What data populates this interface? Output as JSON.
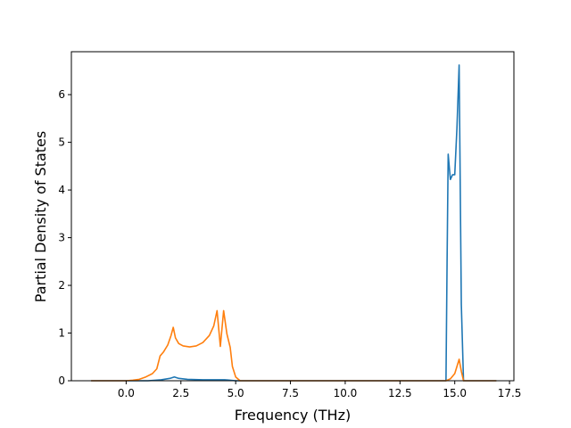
{
  "chart_data": {
    "type": "line",
    "xlabel": "Frequency (THz)",
    "ylabel": "Partial Density of States",
    "xlim": [
      -2.5,
      17.7
    ],
    "ylim": [
      0,
      6.9
    ],
    "xticks": [
      0.0,
      2.5,
      5.0,
      7.5,
      10.0,
      12.5,
      15.0,
      17.5
    ],
    "xtick_labels": [
      "0.0",
      "2.5",
      "5.0",
      "7.5",
      "10.0",
      "12.5",
      "15.0",
      "17.5"
    ],
    "yticks": [
      0,
      1,
      2,
      3,
      4,
      5,
      6
    ],
    "ytick_labels": [
      "0",
      "1",
      "2",
      "3",
      "4",
      "5",
      "6"
    ],
    "grid": false,
    "series": [
      {
        "color": "#1f77b4",
        "points": [
          [
            -1.6,
            0
          ],
          [
            0.0,
            0
          ],
          [
            1.0,
            0.0
          ],
          [
            1.6,
            0.02
          ],
          [
            2.0,
            0.05
          ],
          [
            2.2,
            0.08
          ],
          [
            2.4,
            0.05
          ],
          [
            2.8,
            0.03
          ],
          [
            3.5,
            0.02
          ],
          [
            4.5,
            0.02
          ],
          [
            5.0,
            0.0
          ],
          [
            14.6,
            0.0
          ],
          [
            14.65,
            2.5
          ],
          [
            14.7,
            4.75
          ],
          [
            14.8,
            4.22
          ],
          [
            14.9,
            4.32
          ],
          [
            15.0,
            4.32
          ],
          [
            15.1,
            5.3
          ],
          [
            15.2,
            6.62
          ],
          [
            15.3,
            1.6
          ],
          [
            15.4,
            0.0
          ],
          [
            16.9,
            0.0
          ]
        ]
      },
      {
        "color": "#ff7f0e",
        "points": [
          [
            -1.6,
            0
          ],
          [
            0.0,
            0
          ],
          [
            0.3,
            0.01
          ],
          [
            0.6,
            0.03
          ],
          [
            0.9,
            0.08
          ],
          [
            1.2,
            0.15
          ],
          [
            1.4,
            0.25
          ],
          [
            1.55,
            0.52
          ],
          [
            1.7,
            0.6
          ],
          [
            1.9,
            0.75
          ],
          [
            2.05,
            0.95
          ],
          [
            2.15,
            1.12
          ],
          [
            2.25,
            0.9
          ],
          [
            2.4,
            0.78
          ],
          [
            2.6,
            0.73
          ],
          [
            2.9,
            0.71
          ],
          [
            3.2,
            0.73
          ],
          [
            3.5,
            0.8
          ],
          [
            3.8,
            0.95
          ],
          [
            4.0,
            1.15
          ],
          [
            4.15,
            1.47
          ],
          [
            4.3,
            0.72
          ],
          [
            4.45,
            1.47
          ],
          [
            4.6,
            0.98
          ],
          [
            4.75,
            0.7
          ],
          [
            4.85,
            0.3
          ],
          [
            5.0,
            0.08
          ],
          [
            5.2,
            0.0
          ],
          [
            14.6,
            0.0
          ],
          [
            14.8,
            0.04
          ],
          [
            15.0,
            0.15
          ],
          [
            15.1,
            0.3
          ],
          [
            15.2,
            0.45
          ],
          [
            15.3,
            0.2
          ],
          [
            15.4,
            0.0
          ],
          [
            16.9,
            0.0
          ]
        ]
      }
    ]
  }
}
